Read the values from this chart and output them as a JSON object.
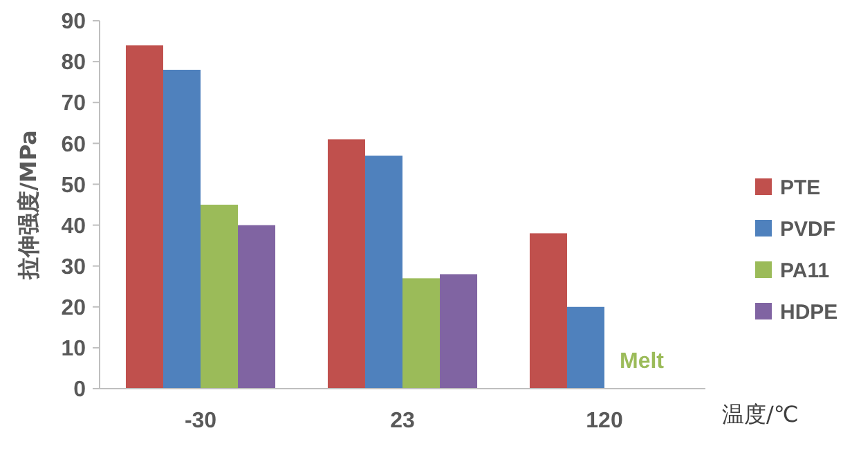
{
  "chart_data": {
    "type": "bar",
    "xlabel": "温度/℃",
    "ylabel": "拉伸强度/MPa",
    "categories": [
      "-30",
      "23",
      "120"
    ],
    "series": [
      {
        "name": "PTE",
        "color": "#c0504d",
        "values": [
          84,
          61,
          38
        ]
      },
      {
        "name": "PVDF",
        "color": "#4f81bd",
        "values": [
          78,
          57,
          20
        ]
      },
      {
        "name": "PA11",
        "color": "#9bbb59",
        "values": [
          45,
          27,
          null
        ]
      },
      {
        "name": "HDPE",
        "color": "#8064a2",
        "values": [
          40,
          28,
          null
        ]
      }
    ],
    "ylim": [
      0,
      90
    ],
    "yticks": [
      0,
      10,
      20,
      30,
      40,
      50,
      60,
      70,
      80,
      90
    ],
    "grid": false,
    "legend": "right",
    "annotations": [
      {
        "text": "Melt",
        "x": "120",
        "y": 7
      }
    ]
  }
}
